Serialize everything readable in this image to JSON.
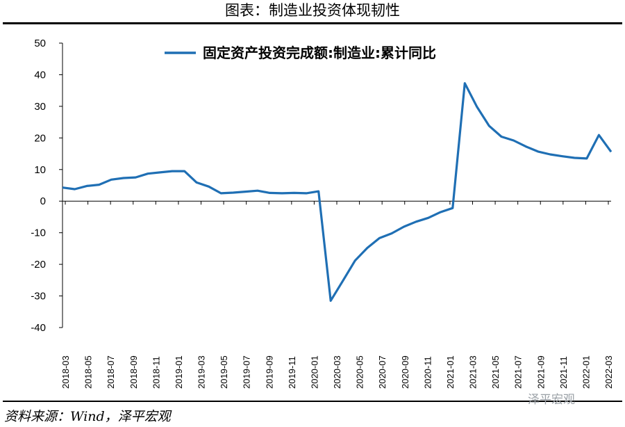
{
  "title": "图表：制造业投资体现韧性",
  "source": "资料来源：Wind，泽平宏观",
  "watermark": "泽平宏观",
  "chart_data": {
    "type": "line",
    "ylim": [
      -40,
      50
    ],
    "yticks": [
      50,
      40,
      30,
      20,
      10,
      0,
      -10,
      -20,
      -30,
      -40
    ],
    "x": [
      "2018-02",
      "2018-03",
      "2018-04",
      "2018-05",
      "2018-06",
      "2018-07",
      "2018-08",
      "2018-09",
      "2018-10",
      "2018-11",
      "2018-12",
      "2019-02",
      "2019-03",
      "2019-04",
      "2019-05",
      "2019-06",
      "2019-07",
      "2019-08",
      "2019-09",
      "2019-10",
      "2019-11",
      "2019-12",
      "2020-02",
      "2020-03",
      "2020-04",
      "2020-05",
      "2020-06",
      "2020-07",
      "2020-08",
      "2020-09",
      "2020-10",
      "2020-11",
      "2020-12",
      "2021-02",
      "2021-03",
      "2021-04",
      "2021-05",
      "2021-06",
      "2021-07",
      "2021-08",
      "2021-09",
      "2021-10",
      "2021-11",
      "2021-12",
      "2022-02",
      "2022-03"
    ],
    "xticklabels": [
      "2018-03",
      "2018-05",
      "2018-07",
      "2018-09",
      "2018-11",
      "2019-01",
      "2019-03",
      "2019-05",
      "2019-07",
      "2019-09",
      "2019-11",
      "2020-01",
      "2020-03",
      "2020-05",
      "2020-07",
      "2020-09",
      "2020-11",
      "2021-01",
      "2021-03",
      "2021-05",
      "2021-07",
      "2021-09",
      "2021-11",
      "2022-01",
      "2022-03"
    ],
    "series": [
      {
        "name": "固定资产投资完成额:制造业:累计同比",
        "color": "#1f6fb4",
        "values": [
          4.3,
          3.8,
          4.8,
          5.2,
          6.8,
          7.3,
          7.5,
          8.7,
          9.1,
          9.5,
          9.5,
          5.9,
          4.6,
          2.5,
          2.7,
          3.0,
          3.3,
          2.6,
          2.5,
          2.6,
          2.5,
          3.1,
          -31.5,
          -25.2,
          -18.8,
          -14.8,
          -11.7,
          -10.2,
          -8.1,
          -6.5,
          -5.3,
          -3.5,
          -2.2,
          37.3,
          29.8,
          23.8,
          20.4,
          19.2,
          17.3,
          15.7,
          14.8,
          14.2,
          13.7,
          13.5,
          20.9,
          15.6
        ]
      }
    ]
  }
}
